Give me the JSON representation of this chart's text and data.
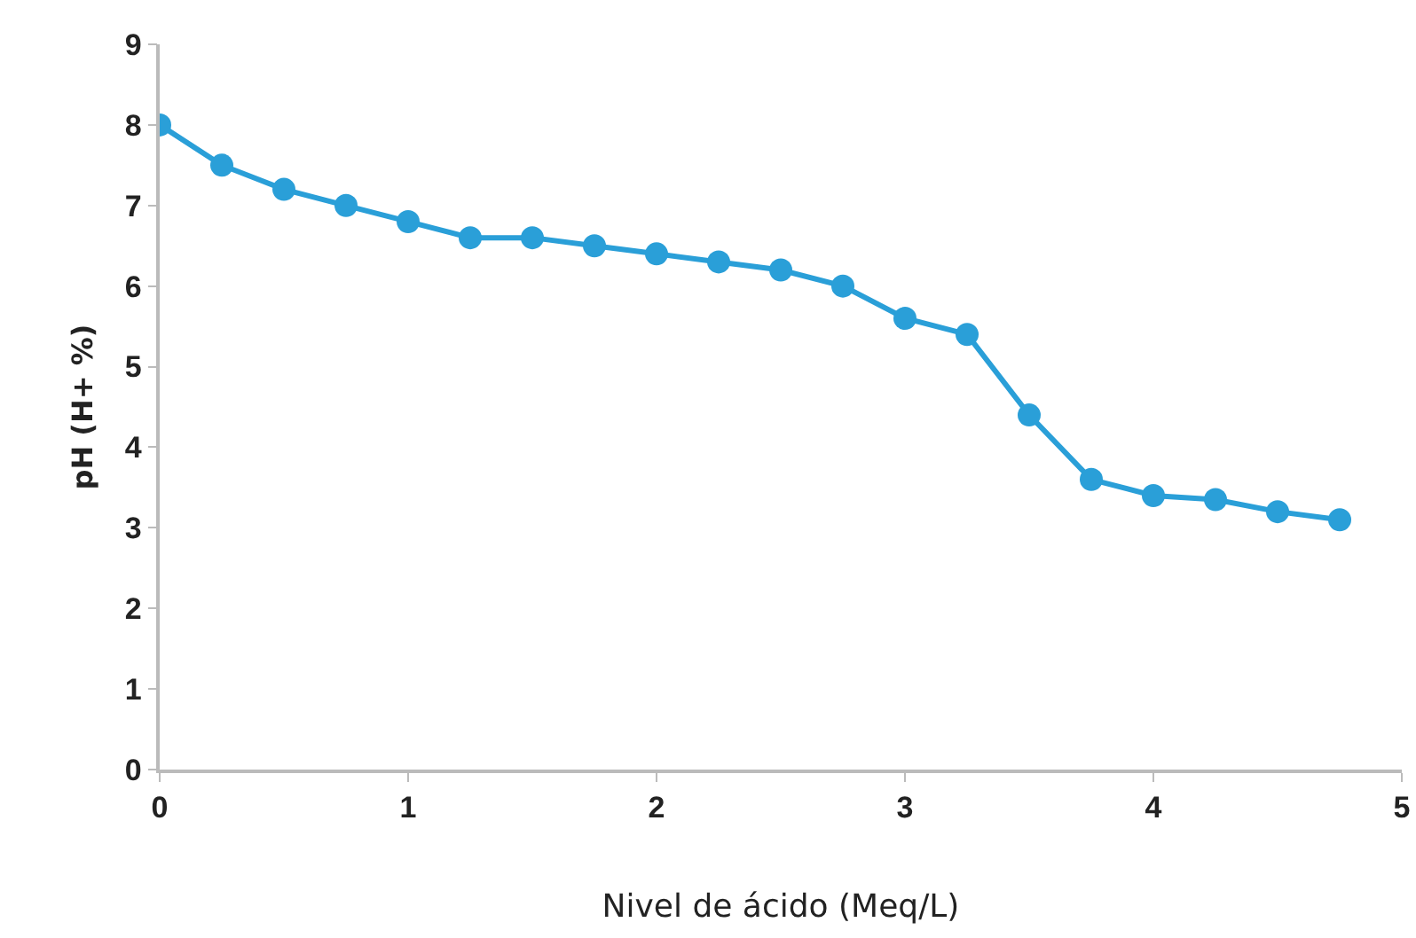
{
  "chart_data": {
    "type": "line",
    "xlabel": "Nivel de ácido (Meq/L)",
    "ylabel": "pH (H+ %)",
    "x": [
      0,
      0.25,
      0.5,
      0.75,
      1,
      1.25,
      1.5,
      1.75,
      2,
      2.25,
      2.5,
      2.75,
      3,
      3.25,
      3.5,
      3.75,
      4,
      4.25,
      4.5,
      4.75
    ],
    "series": [
      {
        "color": "#2a9fd8",
        "values": [
          8,
          7.5,
          7.2,
          7.0,
          6.8,
          6.6,
          6.6,
          6.5,
          6.4,
          6.3,
          6.2,
          6.0,
          5.6,
          5.4,
          4.4,
          3.6,
          3.4,
          3.35,
          3.2,
          3.1
        ]
      }
    ],
    "xlim": [
      0,
      5
    ],
    "xticks": [
      0,
      1,
      2,
      3,
      4,
      5
    ],
    "ylim": [
      0,
      9
    ],
    "yticks": [
      0,
      1,
      2,
      3,
      4,
      5,
      6,
      7,
      8,
      9
    ],
    "grid": false,
    "marker": "circle",
    "line_style": "solid"
  }
}
